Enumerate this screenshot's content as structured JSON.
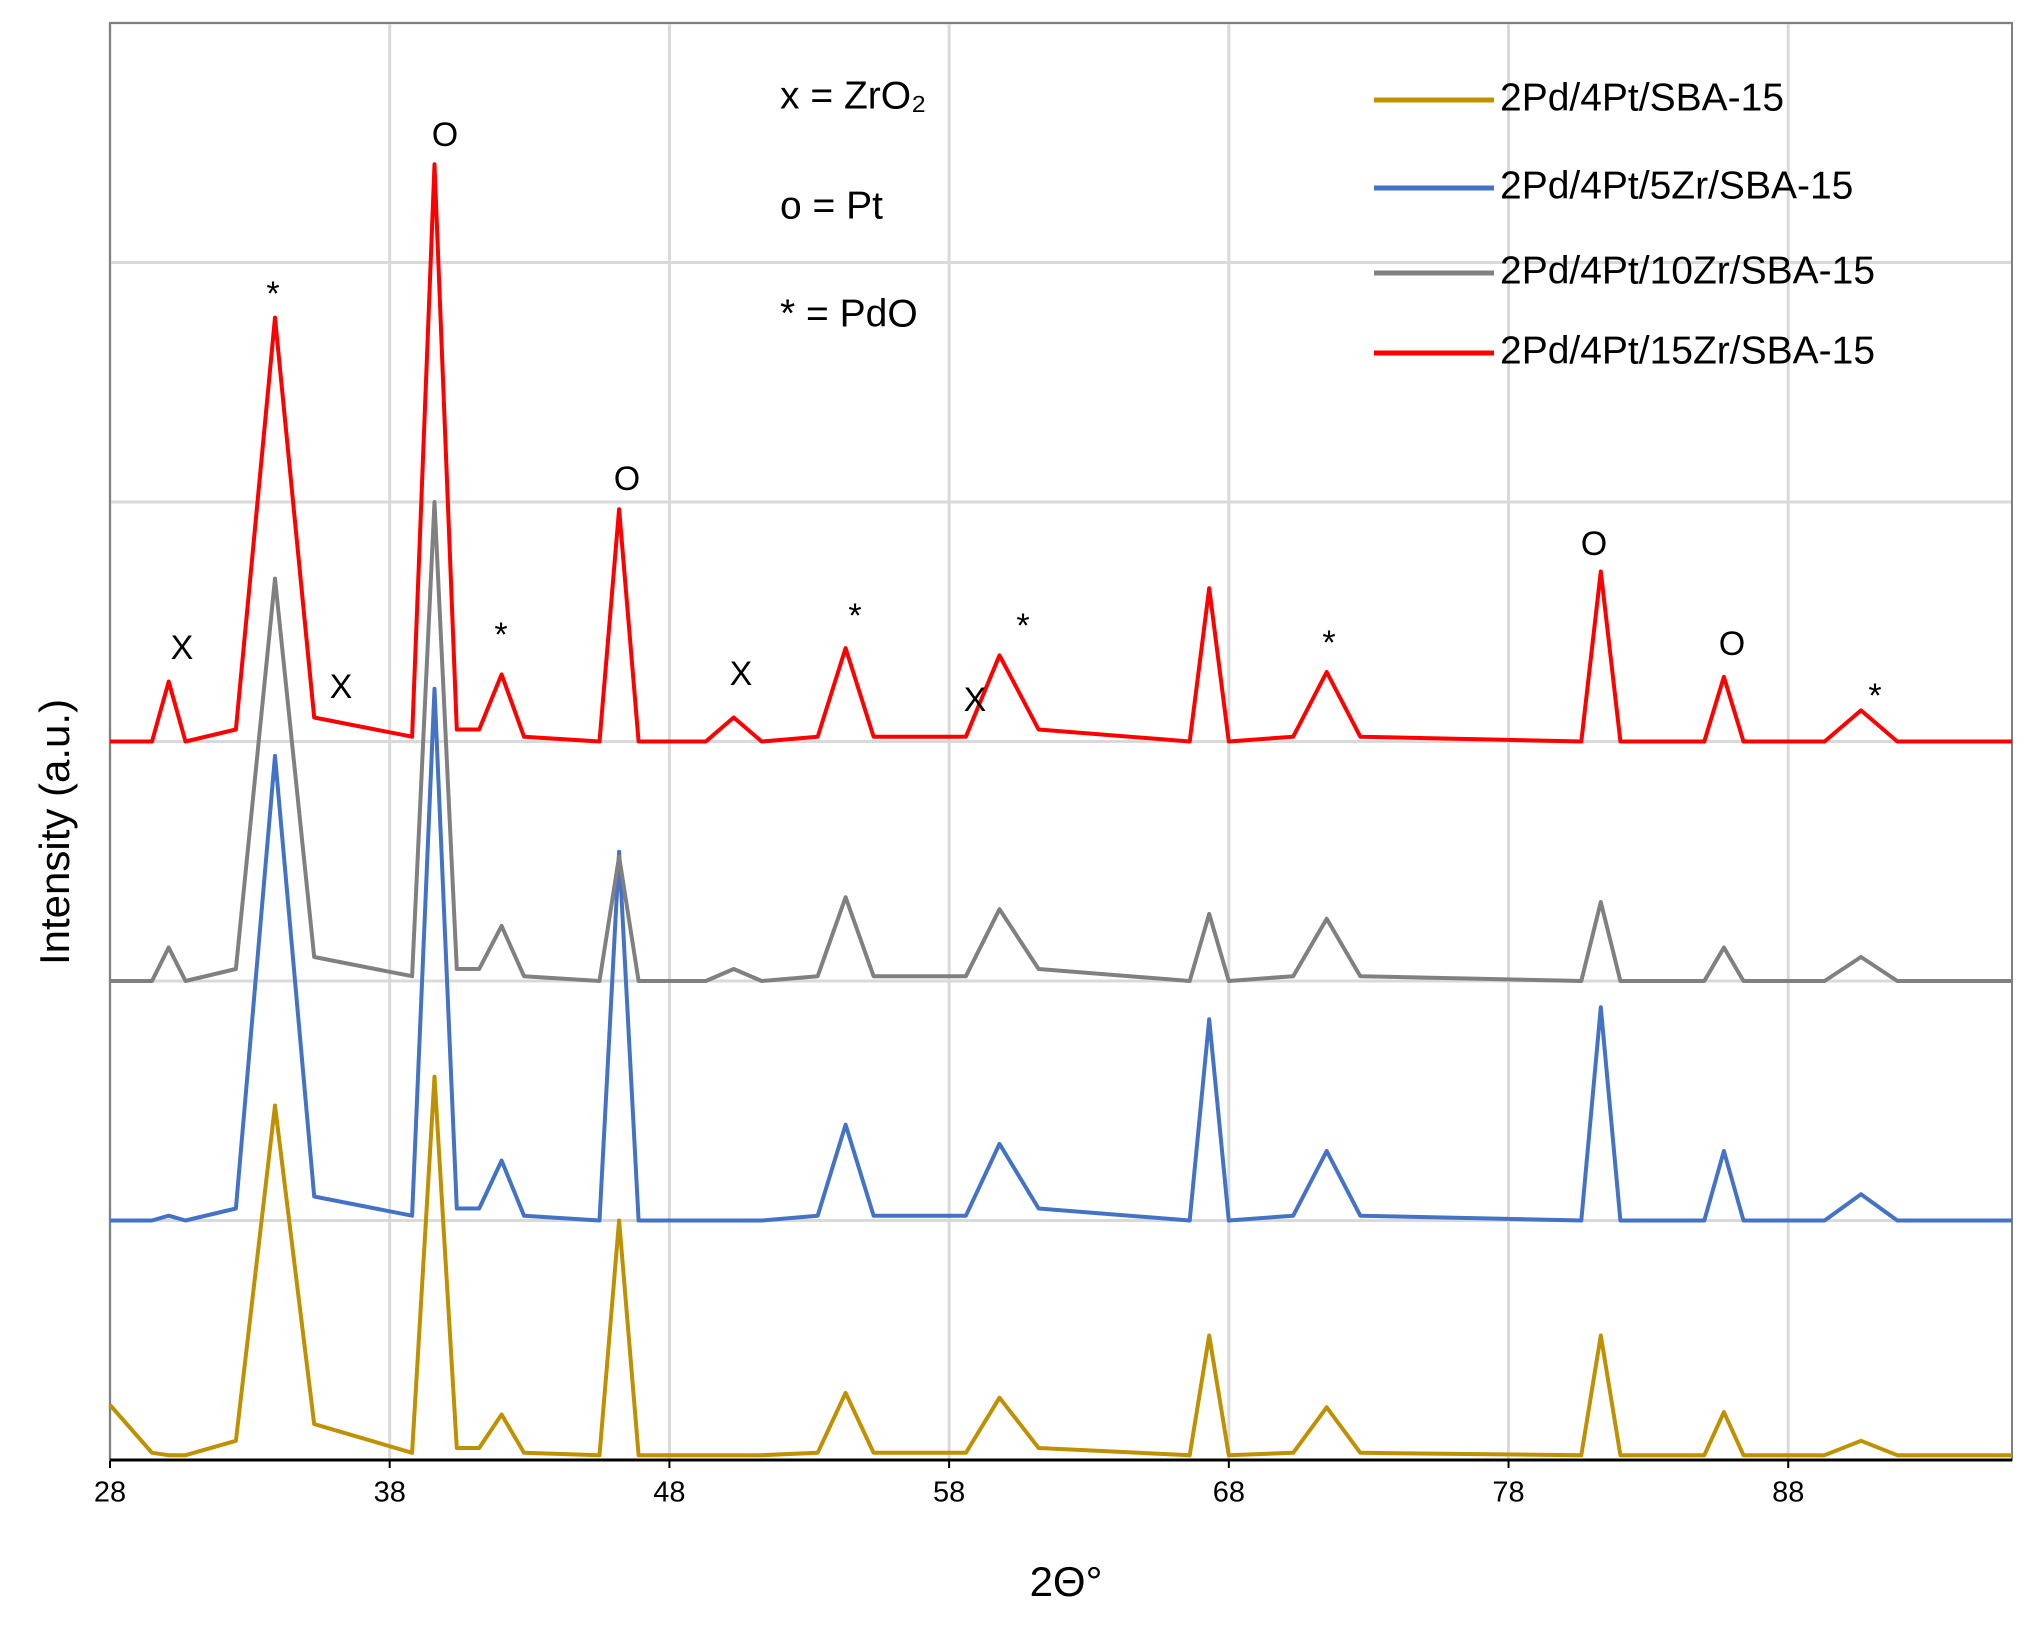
{
  "chart_data": {
    "type": "line",
    "x_label": "2Θ°",
    "y_label": "Intensity (a.u.)",
    "x": [
      28,
      29.5,
      30.1,
      30.7,
      32.5,
      33.9,
      35.3,
      38.8,
      39.6,
      40.4,
      41.2,
      42,
      42.8,
      45.5,
      46.2,
      46.9,
      49.3,
      50.3,
      51.3,
      53.3,
      54.3,
      55.3,
      58.6,
      59.8,
      61.2,
      66.6,
      67.3,
      68,
      70.3,
      71.5,
      72.7,
      80.6,
      81.3,
      82,
      85,
      85.7,
      86.4,
      89.3,
      90.6,
      91.9,
      96
    ],
    "series": [
      {
        "name": "2Pd/4Pt/SBA-15",
        "color": "#bf9000",
        "values": [
          0.23,
          0.03,
          0.02,
          0.02,
          0.08,
          1.48,
          0.15,
          0.03,
          1.6,
          0.05,
          0.05,
          0.19,
          0.03,
          0.02,
          1.0,
          0.02,
          0.02,
          0.02,
          0.02,
          0.03,
          0.28,
          0.03,
          0.03,
          0.26,
          0.05,
          0.02,
          0.52,
          0.02,
          0.03,
          0.22,
          0.03,
          0.02,
          0.52,
          0.02,
          0.02,
          0.2,
          0.02,
          0.02,
          0.08,
          0.02,
          0.02
        ]
      },
      {
        "name": "2Pd/4Pt/5Zr/SBA-15",
        "color": "#4472c4",
        "values": [
          1.0,
          1.0,
          1.02,
          1.0,
          1.05,
          2.94,
          1.1,
          1.02,
          3.22,
          1.05,
          1.05,
          1.25,
          1.02,
          1.0,
          2.54,
          1.0,
          1.0,
          1.0,
          1.0,
          1.02,
          1.4,
          1.02,
          1.02,
          1.32,
          1.05,
          1.0,
          1.84,
          1.0,
          1.02,
          1.29,
          1.02,
          1.0,
          1.89,
          1.0,
          1.0,
          1.29,
          1.0,
          1.0,
          1.11,
          1.0,
          1.0
        ]
      },
      {
        "name": "2Pd/4Pt/10Zr/SBA-15",
        "color": "#808080",
        "values": [
          2.0,
          2.0,
          2.14,
          2.0,
          2.05,
          3.68,
          2.1,
          2.02,
          4.0,
          2.05,
          2.05,
          2.23,
          2.02,
          2.0,
          2.52,
          2.0,
          2.0,
          2.05,
          2.0,
          2.02,
          2.35,
          2.02,
          2.02,
          2.3,
          2.05,
          2.0,
          2.28,
          2.0,
          2.02,
          2.26,
          2.02,
          2.0,
          2.33,
          2.0,
          2.0,
          2.14,
          2.0,
          2.0,
          2.1,
          2.0,
          2.0
        ]
      },
      {
        "name": "2Pd/4Pt/15Zr/SBA-15",
        "color": "#ff0000",
        "values": [
          3.0,
          3.0,
          3.25,
          3.0,
          3.05,
          4.77,
          3.1,
          3.02,
          5.41,
          3.05,
          3.05,
          3.28,
          3.02,
          3.0,
          3.97,
          3.0,
          3.0,
          3.1,
          3.0,
          3.02,
          3.39,
          3.02,
          3.02,
          3.36,
          3.05,
          3.0,
          3.64,
          3.0,
          3.02,
          3.29,
          3.02,
          3.0,
          3.71,
          3.0,
          3.0,
          3.27,
          3.0,
          3.0,
          3.13,
          3.0,
          3.0
        ]
      }
    ],
    "xlim": [
      28,
      96
    ],
    "xticks": [
      28,
      38,
      48,
      58,
      68,
      78,
      88
    ],
    "ylim": [
      0,
      6
    ],
    "yticks": [
      0,
      1,
      2,
      3,
      4,
      5,
      6
    ],
    "ytick_labels": false,
    "grid": true,
    "legend": "top-right",
    "key": [
      "x = ZrO₂",
      "o = Pt",
      "* = PdO"
    ],
    "annotations": [
      "X",
      "*",
      "O",
      "X",
      "*",
      "O",
      "X",
      "*",
      "X",
      "*",
      "*",
      "O",
      "O",
      "*"
    ]
  }
}
